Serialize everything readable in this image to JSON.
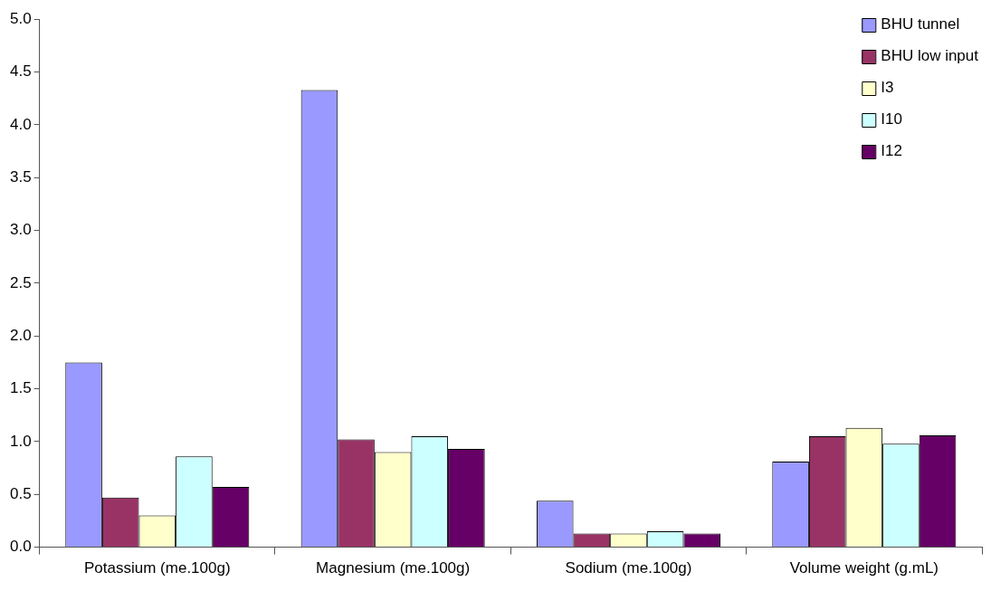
{
  "chart_data": {
    "type": "bar",
    "categories": [
      "Potassium (me.100g)",
      "Magnesium (me.100g)",
      "Sodium (me.100g)",
      "Volume weight (g.mL)"
    ],
    "series": [
      {
        "name": "BHU tunnel",
        "color": "#9999ff",
        "values": [
          1.75,
          4.33,
          0.44,
          0.81
        ]
      },
      {
        "name": "BHU low input",
        "color": "#993366",
        "values": [
          0.47,
          1.02,
          0.13,
          1.05
        ]
      },
      {
        "name": "I3",
        "color": "#ffffcc",
        "values": [
          0.3,
          0.9,
          0.13,
          1.13
        ]
      },
      {
        "name": "I10",
        "color": "#ccffff",
        "values": [
          0.86,
          1.05,
          0.15,
          0.98
        ]
      },
      {
        "name": "I12",
        "color": "#660066",
        "values": [
          0.57,
          0.93,
          0.13,
          1.06
        ]
      }
    ],
    "ylim": [
      0,
      5
    ],
    "yticks": [
      {
        "value": 0,
        "label": "0.0"
      },
      {
        "value": 0.5,
        "label": "0.5"
      },
      {
        "value": 1,
        "label": "1.0"
      },
      {
        "value": 1.5,
        "label": "1.5"
      },
      {
        "value": 2,
        "label": "2.0"
      },
      {
        "value": 2.5,
        "label": "2.5"
      },
      {
        "value": 3,
        "label": "3.0"
      },
      {
        "value": 3.5,
        "label": "3.5"
      },
      {
        "value": 4,
        "label": "4.0"
      },
      {
        "value": 4.5,
        "label": "4.5"
      },
      {
        "value": 5,
        "label": "5.0"
      }
    ],
    "grid": false,
    "legend": "top right"
  }
}
